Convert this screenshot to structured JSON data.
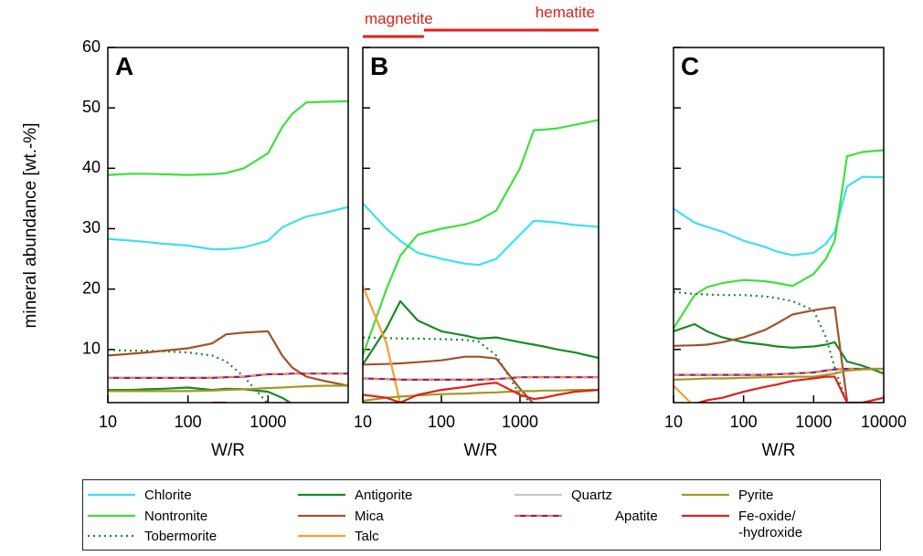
{
  "chart_data": {
    "type": "line",
    "y_label": "mineral abundance [wt.-%]",
    "x_label": "W/R",
    "log_x": true,
    "xlim": [
      10,
      10000
    ],
    "ylim": [
      1.2,
      60
    ],
    "yticks": [
      10,
      20,
      30,
      40,
      50,
      60
    ],
    "x": [
      10,
      20,
      30,
      50,
      100,
      200,
      300,
      500,
      1000,
      1500,
      2000,
      3000,
      5000,
      10000
    ],
    "panels": [
      {
        "label": "A",
        "xticks": [
          10,
          100,
          1000
        ]
      },
      {
        "label": "B",
        "xticks": [
          10,
          100,
          1000
        ],
        "phases": [
          {
            "label": "magnetite",
            "x": [
              10,
              60
            ]
          },
          {
            "label": "hematite",
            "x": [
              60,
              10000
            ]
          }
        ],
        "phase_color": "#e0201a"
      },
      {
        "label": "C",
        "xticks": [
          10,
          100,
          1000,
          10000
        ]
      }
    ],
    "series": [
      {
        "name": "Chlorite",
        "color": "#3ee0f0",
        "values": [
          [
            28.3,
            28,
            27.8,
            27.5,
            27.2,
            26.6,
            26.6,
            26.9,
            28,
            30.2,
            31,
            32,
            32.6,
            33.6
          ],
          [
            34.2,
            30,
            28,
            26,
            25,
            24.2,
            24,
            25,
            29,
            31.3,
            31.2,
            31,
            30.6,
            30.3
          ],
          [
            33.3,
            31,
            30.3,
            29.5,
            28,
            27,
            26.2,
            25.6,
            26,
            27.5,
            29.5,
            37,
            38.6,
            38.5
          ]
        ]
      },
      {
        "name": "Nontronite",
        "color": "#3ee03e",
        "values": [
          [
            38.9,
            39.1,
            39.1,
            39,
            38.9,
            39,
            39.2,
            40,
            42.5,
            46.8,
            49,
            50.9,
            51,
            51.1
          ],
          [
            9,
            20,
            25.5,
            29,
            30,
            30.7,
            31.4,
            33,
            40,
            46.3,
            46.4,
            46.6,
            47.2,
            48
          ],
          [
            13.5,
            19,
            20.3,
            21,
            21.5,
            21.3,
            21,
            20.5,
            22.5,
            25,
            28,
            42,
            42.7,
            43
          ]
        ]
      },
      {
        "name": "Tobermorite",
        "color": "#1e8a2a",
        "dash": "dotted",
        "values": [
          [
            9.9,
            9.8,
            9.8,
            9.7,
            9.5,
            9,
            8,
            5.5,
            1,
            null,
            null,
            null,
            null,
            null
          ],
          [
            12,
            11.9,
            11.8,
            11.8,
            11.7,
            11.6,
            11.3,
            9,
            2.5,
            1,
            null,
            null,
            null,
            null
          ],
          [
            19.5,
            19.2,
            19.1,
            19,
            19,
            18.8,
            18.5,
            18,
            16.5,
            12,
            7,
            1,
            null,
            null
          ]
        ]
      },
      {
        "name": "Antigorite",
        "color": "#1a8a24",
        "values": [
          [
            3.3,
            3.3,
            3.4,
            3.5,
            3.7,
            3.3,
            3.5,
            3.4,
            3,
            2,
            1,
            null,
            null,
            null
          ],
          [
            7.5,
            13.5,
            18,
            14.8,
            13,
            12.3,
            11.8,
            12,
            11.2,
            10.8,
            10.5,
            10,
            9.5,
            8.6
          ],
          [
            13,
            14.2,
            13,
            12,
            11.2,
            10.8,
            10.5,
            10.3,
            10.5,
            10.8,
            11.2,
            8,
            7.3,
            6
          ]
        ]
      },
      {
        "name": "Mica",
        "color": "#a0522d",
        "values": [
          [
            9,
            9.3,
            9.5,
            9.8,
            10.2,
            11,
            12.5,
            12.8,
            13,
            9,
            7,
            5.5,
            4.8,
            4
          ],
          [
            7.5,
            7.6,
            7.7,
            7.9,
            8.2,
            8.8,
            8.8,
            8.5,
            3.5,
            1,
            null,
            null,
            null,
            null
          ],
          [
            10.6,
            10.7,
            10.8,
            11.2,
            12,
            13.2,
            14.3,
            15.8,
            16.5,
            16.8,
            17,
            1.5,
            null,
            null
          ]
        ]
      },
      {
        "name": "Talc",
        "color": "#f5a030",
        "values": [
          [
            null,
            null,
            null,
            null,
            null,
            null,
            null,
            null,
            null,
            null,
            null,
            null,
            null,
            null
          ],
          [
            20.5,
            11,
            1,
            null,
            null,
            null,
            null,
            null,
            null,
            null,
            null,
            null,
            null,
            null
          ],
          [
            4,
            0.5,
            null,
            null,
            null,
            null,
            null,
            null,
            null,
            null,
            null,
            null,
            null,
            null
          ]
        ]
      },
      {
        "name": "Quartz",
        "color": "#c8c8c8",
        "values": [
          [
            null,
            null,
            null,
            null,
            null,
            null,
            null,
            null,
            null,
            null,
            null,
            null,
            null,
            null
          ],
          [
            null,
            null,
            null,
            null,
            null,
            null,
            null,
            null,
            null,
            null,
            null,
            null,
            null,
            null
          ],
          [
            null,
            null,
            null,
            null,
            null,
            null,
            null,
            null,
            null,
            null,
            null,
            null,
            null,
            null
          ]
        ]
      },
      {
        "name": "Apatite",
        "color": "#8b1a8b",
        "dash_color": "#f5a030",
        "values": [
          [
            5.3,
            5.3,
            5.3,
            5.3,
            5.3,
            5.3,
            5.4,
            5.5,
            5.9,
            5.9,
            6,
            6,
            6,
            6
          ],
          [
            5.2,
            5.1,
            5,
            5,
            5,
            5,
            5,
            5.1,
            5.4,
            5.4,
            5.4,
            5.4,
            5.4,
            5.4
          ],
          [
            5.8,
            5.8,
            5.8,
            5.8,
            5.8,
            5.8,
            5.9,
            6,
            6.2,
            6.5,
            6.7,
            6.8,
            6.8,
            6.8
          ]
        ]
      },
      {
        "name": "Pyrite",
        "color": "#a09a20",
        "values": [
          [
            3.1,
            3.1,
            3.1,
            3.1,
            3.1,
            3.2,
            3.3,
            3.4,
            3.6,
            3.7,
            3.8,
            3.9,
            4,
            4
          ],
          [
            1.5,
            2,
            2.2,
            2.4,
            2.6,
            2.7,
            2.8,
            2.9,
            3.1,
            3.1,
            3.2,
            3.2,
            3.3,
            3.3
          ],
          [
            5,
            5.1,
            5.2,
            5.2,
            5.3,
            5.4,
            5.4,
            5.5,
            5.5,
            5.8,
            6,
            6.5,
            6.7,
            6.8
          ]
        ]
      },
      {
        "name": "Fe-oxide/\n-hydroxide",
        "color": "#e0201a",
        "values": [
          [
            null,
            null,
            null,
            null,
            null,
            1.2,
            1.2,
            null,
            null,
            null,
            null,
            null,
            null,
            null
          ],
          [
            2.5,
            2,
            1.2,
            2.5,
            3.3,
            3.8,
            4.2,
            4.5,
            2.5,
            1.8,
            2,
            2.5,
            3,
            3.3
          ],
          [
            null,
            1,
            1.6,
            2,
            3,
            3.8,
            4.2,
            4.8,
            5.2,
            5.5,
            5.5,
            1.2,
            1.2,
            2
          ]
        ]
      }
    ]
  }
}
